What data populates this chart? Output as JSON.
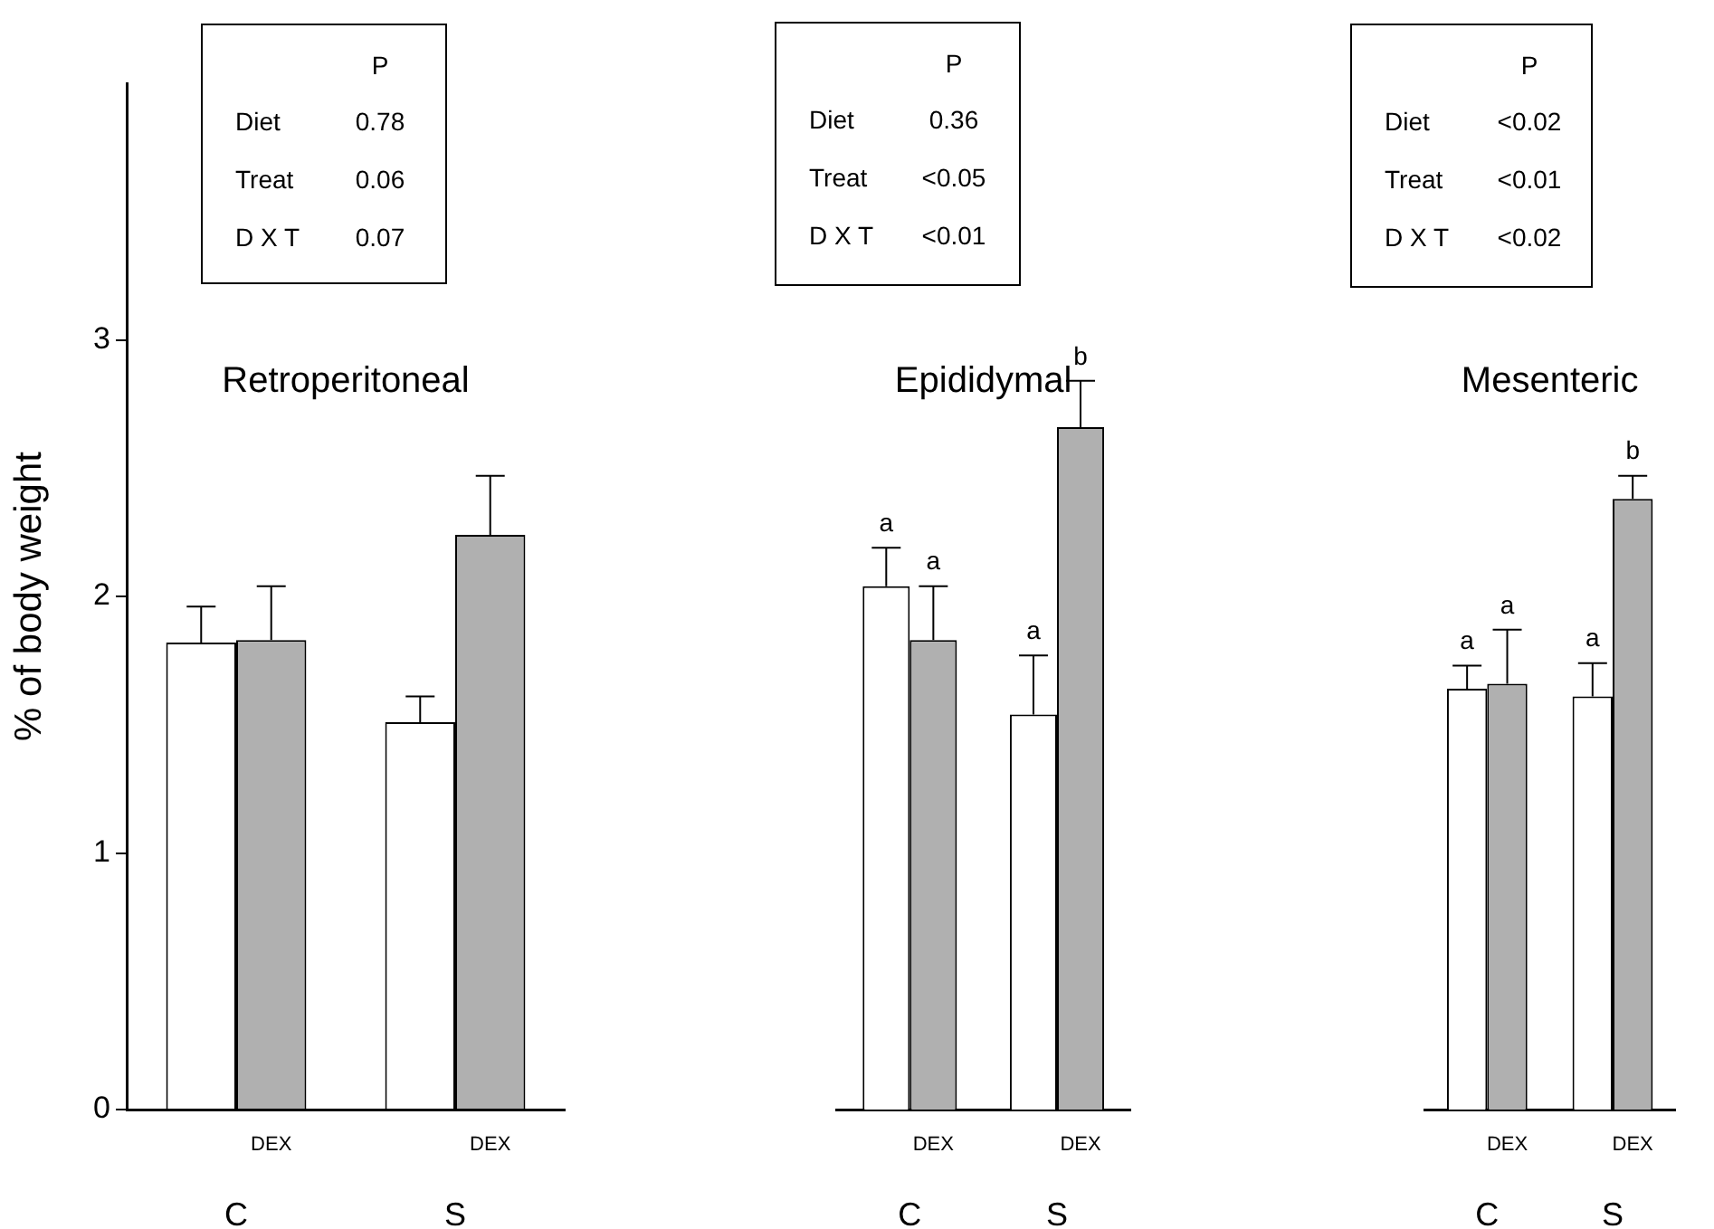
{
  "chart_data": [
    {
      "type": "bar",
      "title": "Retroperitoneal",
      "ylabel": "% of body weight",
      "categories": [
        "C",
        "S"
      ],
      "ylim": [
        0,
        4
      ],
      "yticks": [
        0,
        1,
        2,
        3
      ],
      "grid": false,
      "legend": false,
      "annotations": [
        "P",
        "Diet",
        "0.78",
        "Treat",
        "0.06",
        "D X T",
        "0.07"
      ],
      "series": [
        {
          "color": "#ffffff",
          "values": [
            1.82,
            1.51
          ],
          "errors": [
            [
              1.82,
              1.96
            ],
            [
              1.51,
              1.61
            ]
          ]
        },
        {
          "name": "DEX",
          "color": "#b0b0b0",
          "values": [
            1.83,
            2.24
          ],
          "errors": [
            [
              1.83,
              2.04
            ],
            [
              2.24,
              2.47
            ]
          ]
        }
      ]
    },
    {
      "type": "bar",
      "title": "Epididymal",
      "categories": [
        "C",
        "S"
      ],
      "ylim": [
        0,
        3
      ],
      "yticks": [
        0,
        1,
        2,
        3
      ],
      "grid": false,
      "legend": false,
      "tick_labels": "x",
      "annotations": [
        "P",
        "Diet",
        "0.36",
        "Treat",
        "<0.05",
        "D X T",
        "<0.01"
      ],
      "series": [
        {
          "color": "#ffffff",
          "values": [
            2.04,
            1.54
          ],
          "errors": [
            [
              2.04,
              2.19
            ],
            [
              1.54,
              1.77
            ]
          ],
          "value_labels": [
            "a",
            "a"
          ]
        },
        {
          "name": "DEX",
          "color": "#b0b0b0",
          "values": [
            1.83,
            2.66
          ],
          "errors": [
            [
              1.83,
              2.04
            ],
            [
              2.66,
              2.84
            ]
          ],
          "value_labels": [
            "a",
            "b"
          ]
        }
      ]
    },
    {
      "type": "bar",
      "title": "Mesenteric",
      "categories": [
        "C",
        "S"
      ],
      "ylim": [
        0,
        3
      ],
      "yticks": [
        0,
        1,
        2,
        3
      ],
      "grid": false,
      "legend": false,
      "tick_labels": "x",
      "annotations": [
        "P",
        "Diet",
        "<0.02",
        "Treat",
        "<0.01",
        "D X T",
        "<0.02"
      ],
      "series": [
        {
          "color": "#ffffff",
          "values": [
            1.64,
            1.61
          ],
          "errors": [
            [
              1.64,
              1.73
            ],
            [
              1.61,
              1.74
            ]
          ],
          "value_labels": [
            "a",
            "a"
          ]
        },
        {
          "name": "DEX",
          "color": "#b0b0b0",
          "values": [
            1.66,
            2.38
          ],
          "errors": [
            [
              1.66,
              1.87
            ],
            [
              2.38,
              2.47
            ]
          ],
          "value_labels": [
            "a",
            "b"
          ]
        }
      ]
    }
  ]
}
